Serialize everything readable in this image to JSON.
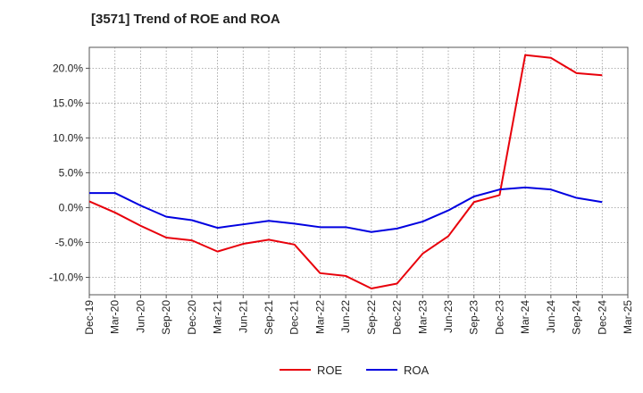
{
  "chart_data": {
    "type": "line",
    "title": "[3571]  Trend of ROE and ROA",
    "xlabel": "",
    "ylabel": "",
    "x": [
      "Dec-19",
      "Mar-20",
      "Jun-20",
      "Sep-20",
      "Dec-20",
      "Mar-21",
      "Jun-21",
      "Sep-21",
      "Dec-21",
      "Mar-22",
      "Jun-22",
      "Sep-22",
      "Dec-22",
      "Mar-23",
      "Jun-23",
      "Sep-23",
      "Dec-23",
      "Mar-24",
      "Jun-24",
      "Sep-24",
      "Dec-24",
      "Mar-25"
    ],
    "ylim": [
      -12.5,
      23.0
    ],
    "yticks": [
      -10,
      -5,
      0,
      5,
      10,
      15,
      20
    ],
    "ytick_labels": [
      "-10.0%",
      "-5.0%",
      "0.0%",
      "5.0%",
      "10.0%",
      "15.0%",
      "20.0%"
    ],
    "grid": true,
    "legend_position": "bottom-center",
    "series": [
      {
        "name": "ROE",
        "color": "#e8000b",
        "values": [
          0.9,
          -0.7,
          -2.6,
          -4.3,
          -4.7,
          -6.3,
          -5.2,
          -4.6,
          -5.3,
          -9.4,
          -9.8,
          -11.6,
          -10.9,
          -6.6,
          -4.1,
          0.8,
          1.8,
          21.9,
          21.5,
          19.3,
          19.0,
          null
        ]
      },
      {
        "name": "ROA",
        "color": "#0000e0",
        "values": [
          2.1,
          2.1,
          0.3,
          -1.3,
          -1.8,
          -2.9,
          -2.4,
          -1.9,
          -2.3,
          -2.8,
          -2.8,
          -3.5,
          -3.0,
          -2.0,
          -0.4,
          1.6,
          2.6,
          2.9,
          2.6,
          1.4,
          0.8,
          null
        ]
      }
    ]
  }
}
